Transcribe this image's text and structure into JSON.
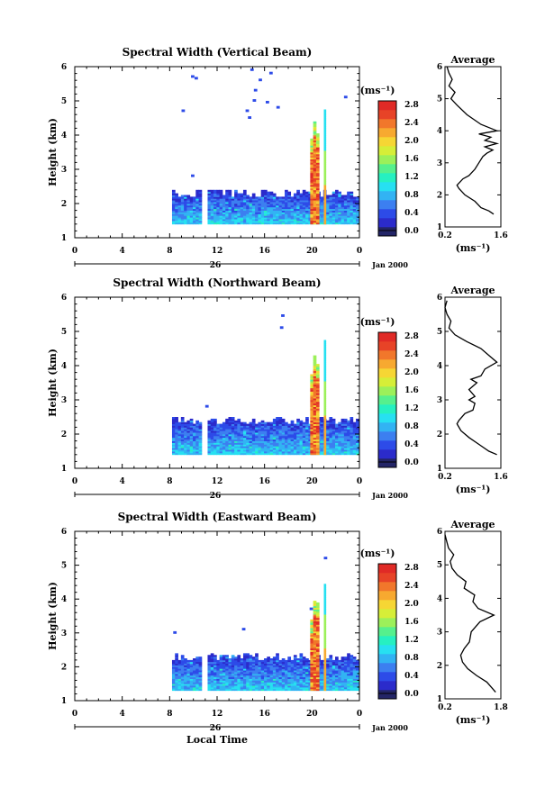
{
  "figure": {
    "x_axis_title": "Local Time",
    "date_label": "Jan 2000",
    "day_label": "26",
    "y_axis_title": "Height (km)",
    "unit_label": "(ms⁻¹)",
    "average_title": "Average"
  },
  "colorbar_levels": [
    "0.0",
    "0.4",
    "0.8",
    "1.2",
    "1.6",
    "2.0",
    "2.4",
    "2.8"
  ],
  "colormap": [
    "#232567",
    "#2b2bcb",
    "#2d4be8",
    "#3c7ff0",
    "#32b3f3",
    "#27e0f1",
    "#26f0c1",
    "#56f08d",
    "#9cf05a",
    "#d6ee38",
    "#f6d634",
    "#f7a930",
    "#f1772b",
    "#e74327",
    "#e02a26"
  ],
  "chart_data": [
    {
      "type": "heatmap",
      "title": "Spectral Width (Vertical Beam)",
      "xlabel": "Local Time",
      "ylabel": "Height (km)",
      "xlim": [
        0,
        24
      ],
      "ylim": [
        1,
        6
      ],
      "x_ticks": [
        "0",
        "4",
        "8",
        "12",
        "16",
        "20",
        "0"
      ],
      "y_ticks": [
        "1",
        "2",
        "3",
        "4",
        "5",
        "6"
      ],
      "colorbar": {
        "label": "(ms⁻¹)",
        "ticks": [
          "0.0",
          "0.4",
          "0.8",
          "1.2",
          "1.6",
          "2.0",
          "2.4",
          "2.8"
        ],
        "range": [
          0,
          3.0
        ]
      },
      "background_band": {
        "x_start": 8.2,
        "x_end": 23.9,
        "gap": [
          10.7,
          11.0
        ],
        "y_bottom": 1.4,
        "y_top": 2.4
      },
      "high_column": {
        "x": 20.2,
        "y_top": 4.6
      },
      "average_profile": {
        "title": "Average",
        "xlabel": "(ms⁻¹)",
        "xlim": [
          0.2,
          1.6
        ],
        "x_ticks": [
          "0.2",
          "1.6"
        ],
        "ylim": [
          1,
          6
        ],
        "y_ticks": [
          "1",
          "2",
          "3",
          "4",
          "5",
          "6"
        ],
        "points": [
          [
            1.42,
            1.4
          ],
          [
            1.3,
            1.5
          ],
          [
            1.1,
            1.6
          ],
          [
            0.95,
            1.8
          ],
          [
            0.7,
            2.0
          ],
          [
            0.55,
            2.2
          ],
          [
            0.5,
            2.3
          ],
          [
            0.65,
            2.5
          ],
          [
            0.8,
            2.6
          ],
          [
            0.95,
            2.8
          ],
          [
            1.05,
            3.0
          ],
          [
            1.15,
            3.2
          ],
          [
            1.25,
            3.3
          ],
          [
            1.4,
            3.4
          ],
          [
            1.2,
            3.5
          ],
          [
            1.5,
            3.6
          ],
          [
            1.2,
            3.7
          ],
          [
            1.35,
            3.8
          ],
          [
            1.05,
            3.9
          ],
          [
            1.5,
            4.0
          ],
          [
            1.1,
            4.2
          ],
          [
            0.75,
            4.5
          ],
          [
            0.5,
            4.8
          ],
          [
            0.35,
            5.0
          ],
          [
            0.45,
            5.2
          ],
          [
            0.3,
            5.4
          ],
          [
            0.38,
            5.6
          ],
          [
            0.3,
            5.8
          ],
          [
            0.25,
            6.0
          ]
        ]
      }
    },
    {
      "type": "heatmap",
      "title": "Spectral Width (Northward Beam)",
      "xlabel": "Local Time",
      "ylabel": "Height (km)",
      "xlim": [
        0,
        24
      ],
      "ylim": [
        1,
        6
      ],
      "x_ticks": [
        "0",
        "4",
        "8",
        "12",
        "16",
        "20",
        "0"
      ],
      "y_ticks": [
        "1",
        "2",
        "3",
        "4",
        "5",
        "6"
      ],
      "colorbar": {
        "label": "(ms⁻¹)",
        "ticks": [
          "0.0",
          "0.4",
          "0.8",
          "1.2",
          "1.6",
          "2.0",
          "2.4",
          "2.8"
        ],
        "range": [
          0,
          3.0
        ]
      },
      "background_band": {
        "x_start": 8.2,
        "x_end": 23.9,
        "gap": [
          10.7,
          11.0
        ],
        "y_bottom": 1.4,
        "y_top": 2.5
      },
      "high_column": {
        "x": 20.2,
        "y_top": 4.6
      },
      "average_profile": {
        "title": "Average",
        "xlabel": "(ms⁻¹)",
        "xlim": [
          0.2,
          1.6
        ],
        "x_ticks": [
          "0.2",
          "1.6"
        ],
        "ylim": [
          1,
          6
        ],
        "y_ticks": [
          "1",
          "2",
          "3",
          "4",
          "5",
          "6"
        ],
        "points": [
          [
            1.5,
            1.4
          ],
          [
            1.3,
            1.5
          ],
          [
            1.05,
            1.7
          ],
          [
            0.8,
            1.9
          ],
          [
            0.6,
            2.1
          ],
          [
            0.5,
            2.3
          ],
          [
            0.55,
            2.4
          ],
          [
            0.7,
            2.6
          ],
          [
            0.9,
            2.7
          ],
          [
            0.95,
            2.9
          ],
          [
            0.8,
            3.0
          ],
          [
            0.95,
            3.1
          ],
          [
            0.8,
            3.3
          ],
          [
            1.0,
            3.5
          ],
          [
            0.85,
            3.6
          ],
          [
            1.1,
            3.7
          ],
          [
            1.2,
            3.9
          ],
          [
            1.5,
            4.1
          ],
          [
            1.3,
            4.3
          ],
          [
            1.1,
            4.5
          ],
          [
            0.75,
            4.7
          ],
          [
            0.45,
            4.9
          ],
          [
            0.3,
            5.1
          ],
          [
            0.35,
            5.3
          ],
          [
            0.25,
            5.5
          ],
          [
            0.2,
            5.7
          ],
          [
            0.25,
            5.9
          ]
        ]
      }
    },
    {
      "type": "heatmap",
      "title": "Spectral Width (Eastward Beam)",
      "xlabel": "Local Time",
      "ylabel": "Height (km)",
      "xlim": [
        0,
        24
      ],
      "ylim": [
        1,
        6
      ],
      "x_ticks": [
        "0",
        "4",
        "8",
        "12",
        "16",
        "20",
        "0"
      ],
      "y_ticks": [
        "1",
        "2",
        "3",
        "4",
        "5",
        "6"
      ],
      "colorbar": {
        "label": "(ms⁻¹)",
        "ticks": [
          "0.0",
          "0.4",
          "0.8",
          "1.2",
          "1.6",
          "2.0",
          "2.4",
          "2.8"
        ],
        "range": [
          0,
          3.0
        ]
      },
      "background_band": {
        "x_start": 8.2,
        "x_end": 23.9,
        "gap": [
          10.7,
          11.0
        ],
        "y_bottom": 1.3,
        "y_top": 2.4
      },
      "high_column": {
        "x": 20.2,
        "y_top": 4.3
      },
      "average_profile": {
        "title": "Average",
        "xlabel": "(ms⁻¹)",
        "xlim": [
          0.2,
          1.8
        ],
        "x_ticks": [
          "0.2",
          "1.8"
        ],
        "ylim": [
          1,
          6
        ],
        "y_ticks": [
          "1",
          "2",
          "3",
          "4",
          "5",
          "6"
        ],
        "points": [
          [
            1.65,
            1.2
          ],
          [
            1.4,
            1.5
          ],
          [
            1.1,
            1.7
          ],
          [
            0.85,
            1.9
          ],
          [
            0.7,
            2.1
          ],
          [
            0.65,
            2.3
          ],
          [
            0.75,
            2.5
          ],
          [
            0.9,
            2.7
          ],
          [
            0.95,
            3.0
          ],
          [
            1.2,
            3.3
          ],
          [
            1.6,
            3.5
          ],
          [
            1.15,
            3.7
          ],
          [
            1.0,
            3.9
          ],
          [
            1.05,
            4.1
          ],
          [
            0.75,
            4.3
          ],
          [
            0.8,
            4.5
          ],
          [
            0.55,
            4.7
          ],
          [
            0.4,
            4.9
          ],
          [
            0.35,
            5.1
          ],
          [
            0.45,
            5.3
          ],
          [
            0.3,
            5.5
          ],
          [
            0.25,
            5.7
          ],
          [
            0.2,
            5.9
          ]
        ]
      }
    }
  ]
}
